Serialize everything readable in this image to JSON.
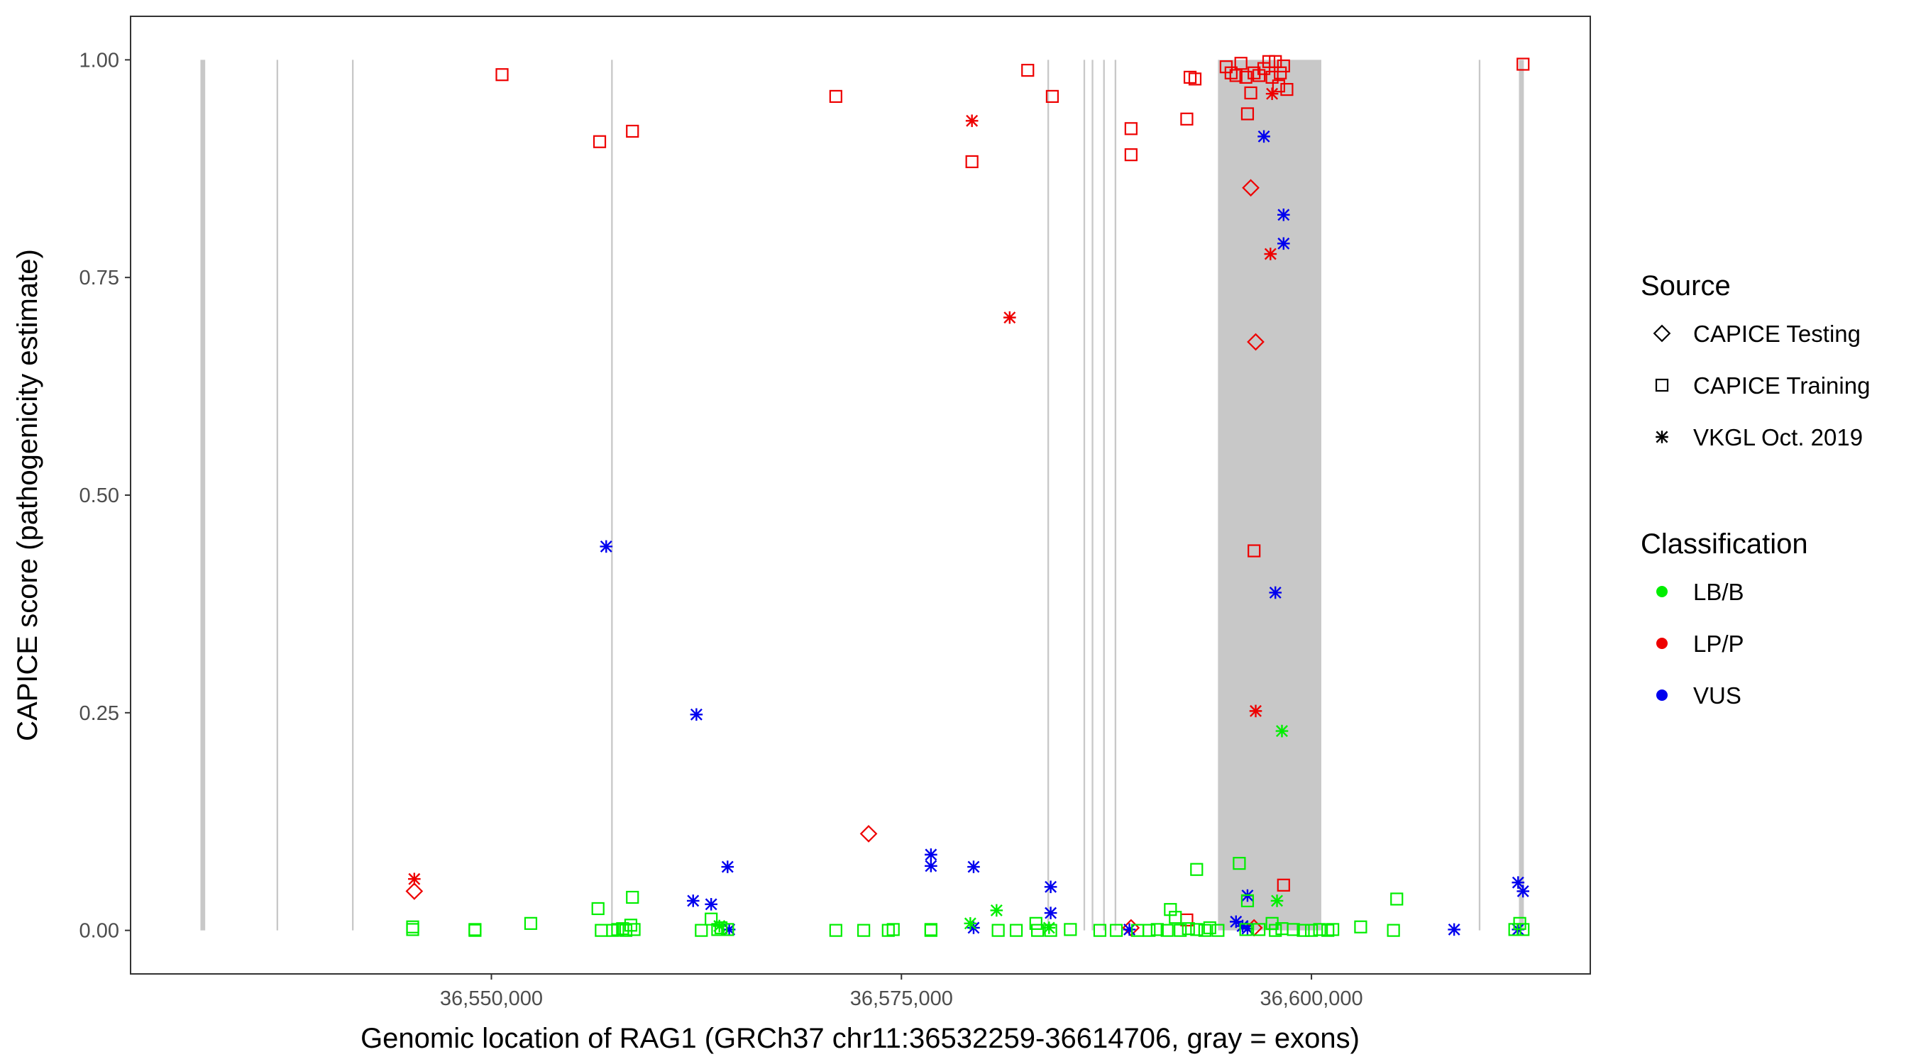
{
  "chart_data": {
    "type": "scatter",
    "title": "",
    "xlabel": "Genomic location of RAG1 (GRCh37 chr11:36532259-36614706, gray = exons)",
    "ylabel": "CAPICE score (pathogenicity estimate)",
    "xlim": [
      36528000,
      36617000
    ],
    "ylim": [
      -0.05,
      1.05
    ],
    "x_ticks": [
      36550000,
      36575000,
      36600000
    ],
    "x_tick_labels": [
      "36,550,000",
      "36,575,000",
      "36,600,000"
    ],
    "y_ticks": [
      0,
      0.25,
      0.5,
      0.75,
      1.0
    ],
    "y_tick_labels": [
      "0.00",
      "0.25",
      "0.50",
      "0.75",
      "1.00"
    ],
    "grid": false,
    "exons": [
      [
        36532259,
        36532550
      ],
      [
        36536900,
        36537000
      ],
      [
        36541500,
        36541600
      ],
      [
        36557300,
        36557400
      ],
      [
        36583900,
        36584000
      ],
      [
        36586100,
        36586200
      ],
      [
        36586600,
        36586700
      ],
      [
        36587300,
        36587400
      ],
      [
        36588000,
        36588100
      ],
      [
        36594300,
        36600600
      ],
      [
        36610200,
        36610300
      ],
      [
        36612650,
        36612950
      ]
    ],
    "legend": {
      "position": "right",
      "source_title": "Source",
      "source_entries": [
        {
          "label": "CAPICE Testing",
          "shape": "diamond"
        },
        {
          "label": "CAPICE Training",
          "shape": "square"
        },
        {
          "label": "VKGL Oct. 2019",
          "shape": "asterisk"
        }
      ],
      "class_title": "Classification",
      "class_entries": [
        {
          "label": "LB/B",
          "color": "#00ee00"
        },
        {
          "label": "LP/P",
          "color": "#ee0000"
        },
        {
          "label": "VUS",
          "color": "#0000ee"
        }
      ]
    },
    "series": [
      {
        "source": "CAPICE Training",
        "classification": "LP/P",
        "shape": "square",
        "color": "#ee0000",
        "x": [
          36550650,
          36556600,
          36558600,
          36571000,
          36579300,
          36582700,
          36584200,
          36589000,
          36589000,
          36592400,
          36592600,
          36592900,
          36594800,
          36595100,
          36595400,
          36595700,
          36596000,
          36596100,
          36596300,
          36596500,
          36596800,
          36597100,
          36597400,
          36597600,
          36597800,
          36598000,
          36598100,
          36598300,
          36598500,
          36612900,
          36592400,
          36596500,
          36598300
        ],
        "y": [
          0.983,
          0.906,
          0.918,
          0.958,
          0.883,
          0.988,
          0.958,
          0.921,
          0.891,
          0.932,
          0.98,
          0.978,
          0.992,
          0.985,
          0.982,
          0.996,
          0.98,
          0.938,
          0.962,
          0.985,
          0.982,
          0.99,
          0.998,
          0.98,
          0.998,
          0.97,
          0.985,
          0.993,
          0.966,
          0.995,
          0.012,
          0.436,
          0.052
        ]
      },
      {
        "source": "CAPICE Testing",
        "classification": "LP/P",
        "shape": "diamond",
        "color": "#ee0000",
        "x": [
          36545300,
          36573000,
          36596300,
          36596600,
          36589000,
          36596500
        ],
        "y": [
          0.045,
          0.111,
          0.853,
          0.676,
          0.003,
          0.003
        ]
      },
      {
        "source": "VKGL Oct. 2019",
        "classification": "LP/P",
        "shape": "asterisk",
        "color": "#ee0000",
        "x": [
          36545300,
          36579300,
          36581600,
          36596600,
          36597500,
          36597600
        ],
        "y": [
          0.059,
          0.93,
          0.704,
          0.252,
          0.777,
          0.961
        ]
      },
      {
        "source": "VKGL Oct. 2019",
        "classification": "VUS",
        "shape": "asterisk",
        "color": "#0000ee",
        "x": [
          36557000,
          36562500,
          36562300,
          36563400,
          36564400,
          36576800,
          36576800,
          36579400,
          36584100,
          36584100,
          36597100,
          36597800,
          36598300,
          36598300,
          36596100,
          36612600,
          36612900,
          36579400,
          36564500,
          36588900,
          36595400,
          36595800,
          36596100,
          36608700,
          36612600
        ],
        "y": [
          0.441,
          0.248,
          0.034,
          0.03,
          0.073,
          0.087,
          0.074,
          0.073,
          0.05,
          0.02,
          0.912,
          0.388,
          0.822,
          0.789,
          0.04,
          0.055,
          0.045,
          0.003,
          0.001,
          0.001,
          0.01,
          0.005,
          0.002,
          0.001,
          0.001
        ]
      },
      {
        "source": "VKGL Oct. 2019",
        "classification": "LB/B",
        "shape": "asterisk",
        "color": "#00ee00",
        "x": [
          36579200,
          36580800,
          36597900,
          36598200,
          36584000,
          36563900
        ],
        "y": [
          0.008,
          0.023,
          0.034,
          0.229,
          0.003,
          0.005
        ]
      },
      {
        "source": "CAPICE Training",
        "classification": "LB/B",
        "shape": "square",
        "color": "#00ee00",
        "x": [
          36545200,
          36545200,
          36549000,
          36549000,
          36552400,
          36556500,
          36556700,
          36557400,
          36557700,
          36558000,
          36558200,
          36558500,
          36558600,
          36558700,
          36562800,
          36563400,
          36563800,
          36564000,
          36564400,
          36571000,
          36572700,
          36574200,
          36574500,
          36576800,
          36576800,
          36580900,
          36582000,
          36583200,
          36583300,
          36584100,
          36585300,
          36587100,
          36588100,
          36589400,
          36590100,
          36590600,
          36591200,
          36591700,
          36592000,
          36592500,
          36593000,
          36593500,
          36593800,
          36594300,
          36596000,
          36596800,
          36597600,
          36597800,
          36598200,
          36598900,
          36599500,
          36600000,
          36600500,
          36601000,
          36601300,
          36603000,
          36605000,
          36605200,
          36612400,
          36612700,
          36612900,
          36591400,
          36593000,
          36595600,
          36596100
        ],
        "y": [
          0.004,
          0.001,
          0.001,
          0.0,
          0.008,
          0.025,
          0.0,
          0.0,
          0.001,
          0.002,
          0.0,
          0.006,
          0.038,
          0.001,
          0.0,
          0.013,
          0.001,
          0.003,
          0.001,
          0.0,
          0.0,
          0.0,
          0.001,
          0.001,
          0.0,
          0.0,
          0.0,
          0.008,
          0.0,
          0.0,
          0.001,
          0.0,
          0.0,
          0.0,
          0.0,
          0.001,
          0.0,
          0.015,
          0.0,
          0.002,
          0.001,
          0.0,
          0.003,
          0.0,
          0.001,
          0.001,
          0.008,
          0.0,
          0.002,
          0.001,
          0.0,
          0.0,
          0.001,
          0.0,
          0.001,
          0.004,
          0.0,
          0.036,
          0.001,
          0.008,
          0.001,
          0.024,
          0.07,
          0.077,
          0.034
        ]
      }
    ]
  }
}
